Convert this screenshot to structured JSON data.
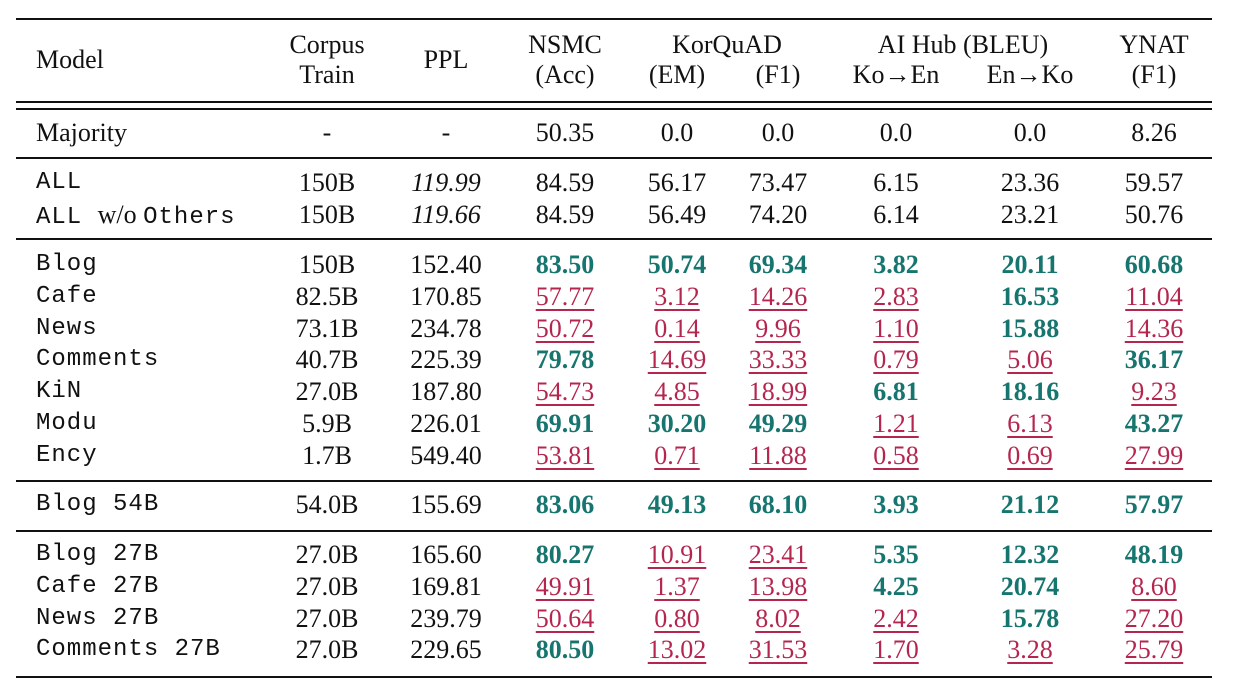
{
  "header": {
    "model": "Model",
    "corpus_1": "Corpus",
    "corpus_2": "Train",
    "ppl": "PPL",
    "nsmc_1": "NSMC",
    "nsmc_2": "(Acc)",
    "korquad": "KorQuAD",
    "em": "(EM)",
    "f1": "(F1)",
    "aihub": "AI Hub (BLEU)",
    "koen": "Ko→En",
    "enko": "En→Ko",
    "ynat_1": "YNAT",
    "ynat_2": "(F1)"
  },
  "groups": [
    [
      {
        "model": "Majority",
        "style": "serif",
        "corpus": "-",
        "ppl": "-",
        "ppl_italic": false,
        "cells": [
          [
            "50.35",
            "n"
          ],
          [
            "0.0",
            "n"
          ],
          [
            "0.0",
            "n"
          ],
          [
            "0.0",
            "n"
          ],
          [
            "0.0",
            "n"
          ],
          [
            "8.26",
            "n"
          ]
        ]
      }
    ],
    [
      {
        "model": "ALL",
        "style": "mono",
        "corpus": "150B",
        "ppl": "119.99",
        "ppl_italic": true,
        "cells": [
          [
            "84.59",
            "n"
          ],
          [
            "56.17",
            "n"
          ],
          [
            "73.47",
            "n"
          ],
          [
            "6.15",
            "n"
          ],
          [
            "23.36",
            "n"
          ],
          [
            "59.57",
            "n"
          ]
        ]
      },
      {
        "model_parts": [
          [
            "ALL ",
            "mono"
          ],
          [
            "w/o ",
            "serif"
          ],
          [
            "Others",
            "mono"
          ]
        ],
        "corpus": "150B",
        "ppl": "119.66",
        "ppl_italic": true,
        "cells": [
          [
            "84.59",
            "n"
          ],
          [
            "56.49",
            "n"
          ],
          [
            "74.20",
            "n"
          ],
          [
            "6.14",
            "n"
          ],
          [
            "23.21",
            "n"
          ],
          [
            "50.76",
            "n"
          ]
        ]
      }
    ],
    [
      {
        "model": "Blog",
        "style": "mono",
        "corpus": "150B",
        "ppl": "152.40",
        "ppl_italic": false,
        "cells": [
          [
            "83.50",
            "g"
          ],
          [
            "50.74",
            "g"
          ],
          [
            "69.34",
            "g"
          ],
          [
            "3.82",
            "g"
          ],
          [
            "20.11",
            "g"
          ],
          [
            "60.68",
            "g"
          ]
        ]
      },
      {
        "model": "Cafe",
        "style": "mono",
        "corpus": "82.5B",
        "ppl": "170.85",
        "ppl_italic": false,
        "cells": [
          [
            "57.77",
            "b"
          ],
          [
            "3.12",
            "b"
          ],
          [
            "14.26",
            "b"
          ],
          [
            "2.83",
            "b"
          ],
          [
            "16.53",
            "g"
          ],
          [
            "11.04",
            "b"
          ]
        ]
      },
      {
        "model": "News",
        "style": "mono",
        "corpus": "73.1B",
        "ppl": "234.78",
        "ppl_italic": false,
        "cells": [
          [
            "50.72",
            "b"
          ],
          [
            "0.14",
            "b"
          ],
          [
            "9.96",
            "b"
          ],
          [
            "1.10",
            "b"
          ],
          [
            "15.88",
            "g"
          ],
          [
            "14.36",
            "b"
          ]
        ]
      },
      {
        "model": "Comments",
        "style": "mono",
        "corpus": "40.7B",
        "ppl": "225.39",
        "ppl_italic": false,
        "cells": [
          [
            "79.78",
            "g"
          ],
          [
            "14.69",
            "b"
          ],
          [
            "33.33",
            "b"
          ],
          [
            "0.79",
            "b"
          ],
          [
            "5.06",
            "b"
          ],
          [
            "36.17",
            "g"
          ]
        ]
      },
      {
        "model": "KiN",
        "style": "mono",
        "corpus": "27.0B",
        "ppl": "187.80",
        "ppl_italic": false,
        "cells": [
          [
            "54.73",
            "b"
          ],
          [
            "4.85",
            "b"
          ],
          [
            "18.99",
            "b"
          ],
          [
            "6.81",
            "g"
          ],
          [
            "18.16",
            "g"
          ],
          [
            "9.23",
            "b"
          ]
        ]
      },
      {
        "model": "Modu",
        "style": "mono",
        "corpus": "5.9B",
        "ppl": "226.01",
        "ppl_italic": false,
        "cells": [
          [
            "69.91",
            "g"
          ],
          [
            "30.20",
            "g"
          ],
          [
            "49.29",
            "g"
          ],
          [
            "1.21",
            "b"
          ],
          [
            "6.13",
            "b"
          ],
          [
            "43.27",
            "g"
          ]
        ]
      },
      {
        "model": "Ency",
        "style": "mono",
        "corpus": "1.7B",
        "ppl": "549.40",
        "ppl_italic": false,
        "cells": [
          [
            "53.81",
            "b"
          ],
          [
            "0.71",
            "b"
          ],
          [
            "11.88",
            "b"
          ],
          [
            "0.58",
            "b"
          ],
          [
            "0.69",
            "b"
          ],
          [
            "27.99",
            "b"
          ]
        ]
      }
    ],
    [
      {
        "model": "Blog 54B",
        "style": "mono",
        "corpus": "54.0B",
        "ppl": "155.69",
        "ppl_italic": false,
        "cells": [
          [
            "83.06",
            "g"
          ],
          [
            "49.13",
            "g"
          ],
          [
            "68.10",
            "g"
          ],
          [
            "3.93",
            "g"
          ],
          [
            "21.12",
            "g"
          ],
          [
            "57.97",
            "g"
          ]
        ]
      }
    ],
    [
      {
        "model": "Blog 27B",
        "style": "mono",
        "corpus": "27.0B",
        "ppl": "165.60",
        "ppl_italic": false,
        "cells": [
          [
            "80.27",
            "g"
          ],
          [
            "10.91",
            "b"
          ],
          [
            "23.41",
            "b"
          ],
          [
            "5.35",
            "g"
          ],
          [
            "12.32",
            "g"
          ],
          [
            "48.19",
            "g"
          ]
        ]
      },
      {
        "model": "Cafe 27B",
        "style": "mono",
        "corpus": "27.0B",
        "ppl": "169.81",
        "ppl_italic": false,
        "cells": [
          [
            "49.91",
            "b"
          ],
          [
            "1.37",
            "b"
          ],
          [
            "13.98",
            "b"
          ],
          [
            "4.25",
            "g"
          ],
          [
            "20.74",
            "g"
          ],
          [
            "8.60",
            "b"
          ]
        ]
      },
      {
        "model": "News 27B",
        "style": "mono",
        "corpus": "27.0B",
        "ppl": "239.79",
        "ppl_italic": false,
        "cells": [
          [
            "50.64",
            "b"
          ],
          [
            "0.80",
            "b"
          ],
          [
            "8.02",
            "b"
          ],
          [
            "2.42",
            "b"
          ],
          [
            "15.78",
            "g"
          ],
          [
            "27.20",
            "b"
          ]
        ]
      },
      {
        "model": "Comments 27B",
        "style": "mono",
        "corpus": "27.0B",
        "ppl": "229.65",
        "ppl_italic": false,
        "cells": [
          [
            "80.50",
            "g"
          ],
          [
            "13.02",
            "b"
          ],
          [
            "31.53",
            "b"
          ],
          [
            "1.70",
            "b"
          ],
          [
            "3.28",
            "b"
          ],
          [
            "25.79",
            "b"
          ]
        ]
      }
    ]
  ],
  "colors": {
    "good": "#17756f",
    "bad": "#b5264f"
  }
}
